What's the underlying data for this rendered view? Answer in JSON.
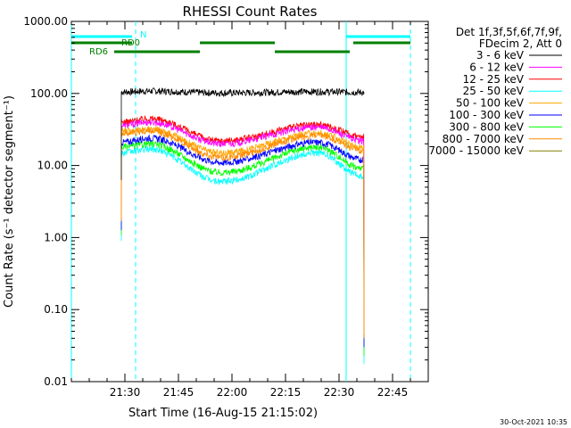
{
  "chart_data": {
    "type": "line",
    "title": "RHESSI Count Rates",
    "xlabel": "Start Time (16-Aug-15 21:15:02)",
    "ylabel": "Count Rate (s⁻¹ detector segment⁻¹)",
    "yscale": "log",
    "ylim": [
      0.01,
      1000
    ],
    "xlim_minutes_after_2115": [
      0,
      100
    ],
    "x_tick_labels": [
      "21:30",
      "21:45",
      "22:00",
      "22:15",
      "22:30",
      "22:45"
    ],
    "x_tick_minutes": [
      15,
      30,
      45,
      60,
      75,
      90
    ],
    "y_tick_labels": [
      "0.01",
      "0.10",
      "1.00",
      "10.00",
      "100.00",
      "1000.00"
    ],
    "y_tick_values": [
      0.01,
      0.1,
      1,
      10,
      100,
      1000
    ],
    "legend_header": [
      "Det 1f,3f,5f,6f,7f,9f,",
      "FDecim 2, Att 0"
    ],
    "legend_position": "right",
    "data_window_minutes": [
      14,
      82
    ],
    "series": [
      {
        "name": "3 - 6 keV",
        "color": "#000000",
        "start": 105,
        "p1": 108,
        "low": 102,
        "p2": 106,
        "end": 104
      },
      {
        "name": "6 - 12 keV",
        "color": "#ff00ff",
        "start": 36,
        "p1": 40,
        "low": 20,
        "p2": 34,
        "end": 22
      },
      {
        "name": "12 - 25 keV",
        "color": "#ff0000",
        "start": 40,
        "p1": 45,
        "low": 22,
        "p2": 37,
        "end": 25
      },
      {
        "name": "25 - 50 keV",
        "color": "#00ffff",
        "start": 15,
        "p1": 17,
        "low": 6,
        "p2": 15,
        "end": 7
      },
      {
        "name": "50 - 100 keV",
        "color": "#ffa500",
        "start": 30,
        "p1": 32,
        "low": 15,
        "p2": 28,
        "end": 18
      },
      {
        "name": "100 - 300 keV",
        "color": "#0000ff",
        "start": 21,
        "p1": 24,
        "low": 11,
        "p2": 21,
        "end": 12
      },
      {
        "name": "300 - 800 keV",
        "color": "#00ff00",
        "start": 18,
        "p1": 20,
        "low": 8,
        "p2": 18,
        "end": 9
      },
      {
        "name": "800 - 7000 keV",
        "color": "#ff8c00",
        "start": 28,
        "p1": 30,
        "low": 13,
        "p2": 26,
        "end": 16
      },
      {
        "name": "7000 - 15000 keV",
        "color": "#808000",
        "start": 0,
        "p1": 0,
        "low": 0,
        "p2": 0,
        "end": 0
      }
    ],
    "state_bars": [
      {
        "label": "N",
        "color": "#00ffff",
        "segments_minutes": [
          [
            0,
            17
          ],
          [
            77,
            95
          ]
        ]
      },
      {
        "label": "RD0",
        "color": "#008000",
        "segments_minutes": [
          [
            0,
            17
          ],
          [
            36,
            57
          ],
          [
            79,
            95
          ]
        ]
      },
      {
        "label": "RD6",
        "color": "#008000",
        "segments_minutes": [
          [
            12,
            36
          ],
          [
            57,
            78
          ]
        ]
      }
    ],
    "vertical_markers": [
      {
        "color": "#00ffff",
        "style": "solid",
        "minute": 0
      },
      {
        "color": "#00ffff",
        "style": "dashed",
        "minute": 18
      },
      {
        "color": "#00ffff",
        "style": "solid",
        "minute": 77
      },
      {
        "color": "#00ffff",
        "style": "dashed",
        "minute": 95
      }
    ]
  },
  "footer": {
    "timestamp": "30-Oct-2021 10:35"
  }
}
